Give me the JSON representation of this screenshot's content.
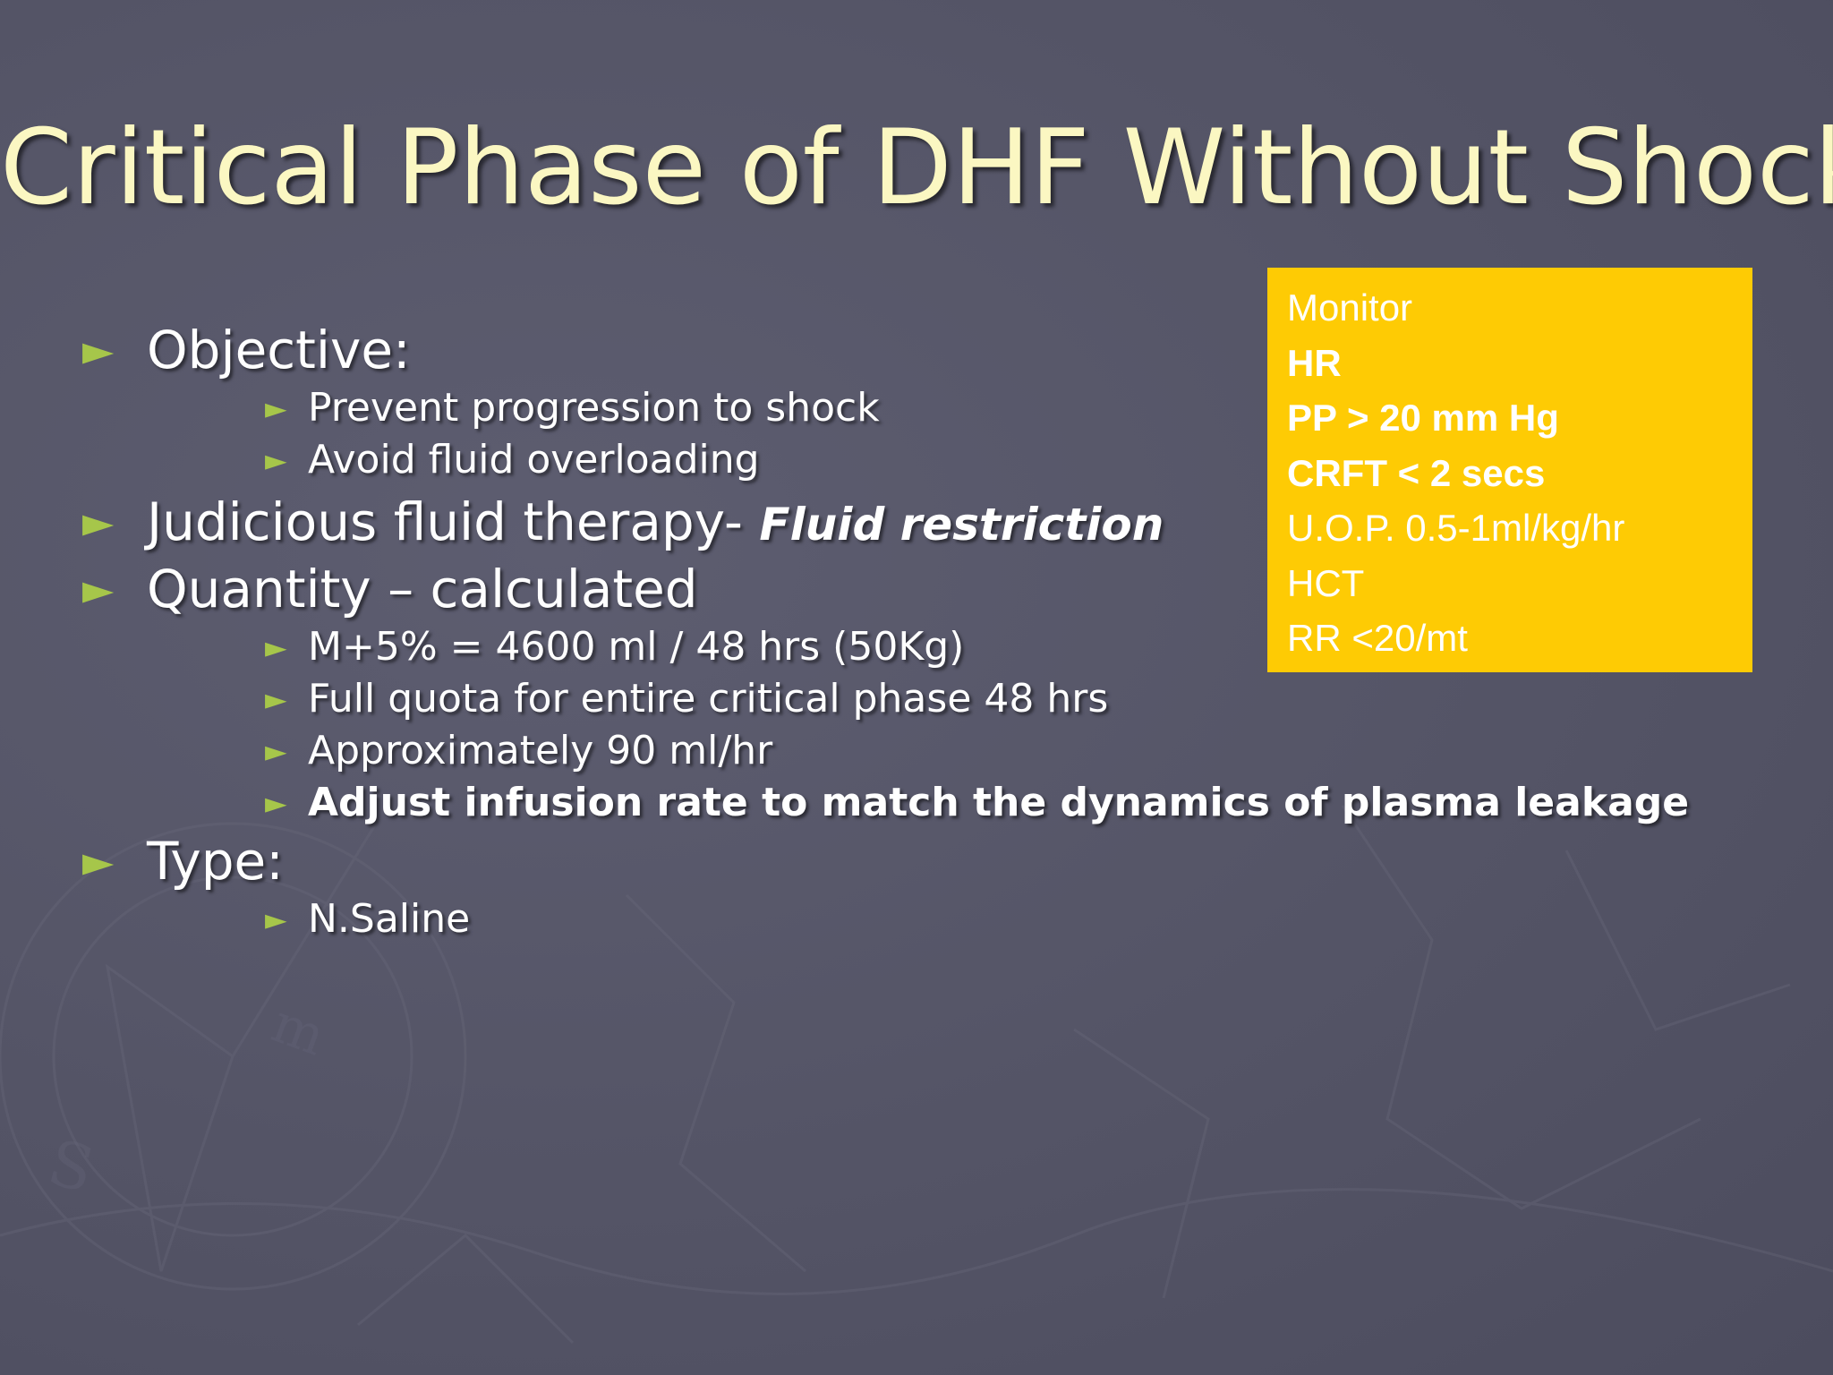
{
  "slide": {
    "title": "Critical Phase of DHF Without Shock",
    "colors": {
      "background": "#555567",
      "title": "#fbf7c2",
      "text": "#ffffff",
      "bullet": "#a6c64a",
      "monitor_box": "#fecb04"
    },
    "bullet_glyph": "►",
    "objective": {
      "label": "Objective:",
      "items": [
        "Prevent progression to shock",
        "Avoid fluid overloading"
      ]
    },
    "judicious": {
      "label": "Judicious fluid therapy-",
      "emphasis": "Fluid restriction"
    },
    "quantity": {
      "label": "Quantity – calculated",
      "items": [
        "M+5%  = 4600 ml / 48 hrs (50Kg)",
        "Full quota for entire critical phase 48 hrs",
        "Approximately  90 ml/hr",
        "Adjust infusion rate to match the dynamics of plasma leakage"
      ]
    },
    "type": {
      "label": "Type:",
      "items": [
        "N.Saline"
      ]
    },
    "monitor": {
      "heading": "Monitor",
      "hr": "HR",
      "pp": "PP > 20 mm Hg",
      "crft": "CRFT < 2 secs",
      "uop": "U.O.P. 0.5-1ml/kg/hr",
      "hct": "HCT",
      "rr": "RR <20/mt"
    }
  }
}
